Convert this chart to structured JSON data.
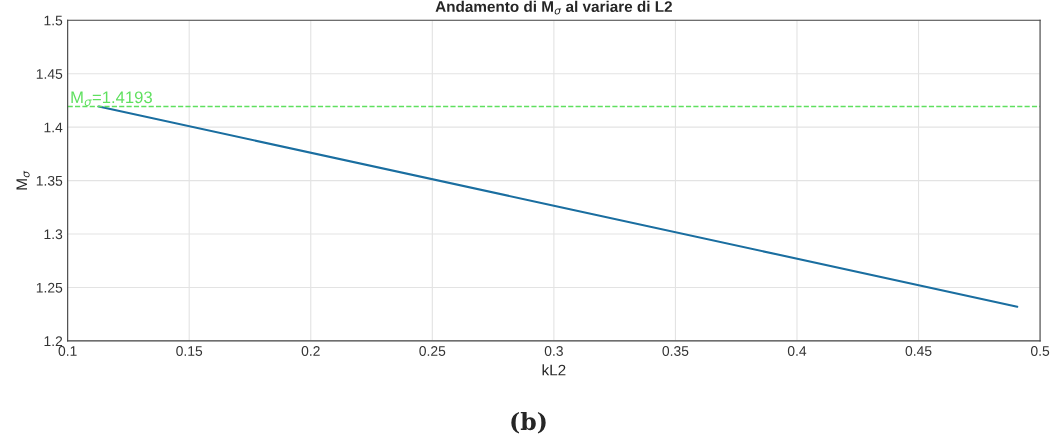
{
  "chart_data": {
    "type": "line",
    "title": "Andamento di M$_{σ}$ al variare di L2",
    "xlabel": "kL2",
    "ylabel": "M$_{σ}$",
    "x": [
      0.1128,
      0.3,
      0.4906
    ],
    "series": [
      {
        "color": "#1a6ea0",
        "values": [
          1.4193,
          1.3265,
          1.232
        ]
      }
    ],
    "xlim": [
      0.1,
      0.5
    ],
    "ylim": [
      1.2,
      1.5
    ],
    "xticks": [
      0.1,
      0.15,
      0.2,
      0.25,
      0.3,
      0.35,
      0.4,
      0.45,
      0.5
    ],
    "yticks": [
      1.2,
      1.25,
      1.3,
      1.35,
      1.4,
      1.45,
      1.5
    ],
    "grid": true,
    "ref_lines": [
      {
        "axis": "y",
        "value": 1.4193,
        "label": "M$_{σ}$=1.4193",
        "color": "#5fe05f",
        "line_style": "dashed"
      }
    ],
    "annotations": [
      "(b)"
    ]
  }
}
